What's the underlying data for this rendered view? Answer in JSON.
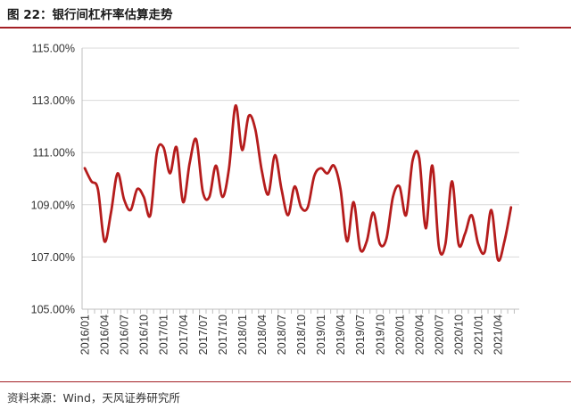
{
  "header": {
    "title": "图 22：银行间杠杆率估算走势"
  },
  "footer": {
    "source": "资料来源：Wind，天风证券研究所"
  },
  "chart_data": {
    "type": "line",
    "title": "",
    "xlabel": "",
    "ylabel": "",
    "ylim": [
      105,
      115
    ],
    "y_ticks": [
      "105.00%",
      "107.00%",
      "109.00%",
      "111.00%",
      "113.00%",
      "115.00%"
    ],
    "y_tick_values": [
      105,
      107,
      109,
      111,
      113,
      115
    ],
    "x_tick_labels": [
      "2016/01",
      "2016/04",
      "2016/07",
      "2016/10",
      "2017/01",
      "2017/04",
      "2017/07",
      "2017/10",
      "2018/01",
      "2018/04",
      "2018/07",
      "2018/10",
      "2019/01",
      "2019/04",
      "2019/07",
      "2019/10",
      "2020/01",
      "2020/04",
      "2020/07",
      "2020/10",
      "2021/01",
      "2021/04"
    ],
    "grid": "horizontal",
    "line_color": "#b51c1c",
    "series": [
      {
        "name": "",
        "x": [
          "2016/01",
          "2016/02",
          "2016/03",
          "2016/04",
          "2016/05",
          "2016/06",
          "2016/07",
          "2016/08",
          "2016/09",
          "2016/10",
          "2016/11",
          "2016/12",
          "2017/01",
          "2017/02",
          "2017/03",
          "2017/04",
          "2017/05",
          "2017/06",
          "2017/07",
          "2017/08",
          "2017/09",
          "2017/10",
          "2017/11",
          "2017/12",
          "2018/01",
          "2018/02",
          "2018/03",
          "2018/04",
          "2018/05",
          "2018/06",
          "2018/07",
          "2018/08",
          "2018/09",
          "2018/10",
          "2018/11",
          "2018/12",
          "2019/01",
          "2019/02",
          "2019/03",
          "2019/04",
          "2019/05",
          "2019/06",
          "2019/07",
          "2019/08",
          "2019/09",
          "2019/10",
          "2019/11",
          "2019/12",
          "2020/01",
          "2020/02",
          "2020/03",
          "2020/04",
          "2020/05",
          "2020/06",
          "2020/07",
          "2020/08",
          "2020/09",
          "2020/10",
          "2020/11",
          "2020/12",
          "2021/01",
          "2021/02",
          "2021/03",
          "2021/04",
          "2021/05",
          "2021/06"
        ],
        "values": [
          110.4,
          109.9,
          109.6,
          107.6,
          108.7,
          110.2,
          109.2,
          108.8,
          109.6,
          109.3,
          108.6,
          111.0,
          111.2,
          110.2,
          111.2,
          109.1,
          110.6,
          111.5,
          109.5,
          109.3,
          110.5,
          109.3,
          110.4,
          112.8,
          111.1,
          112.4,
          111.9,
          110.3,
          109.4,
          110.9,
          109.6,
          108.6,
          109.7,
          108.9,
          108.9,
          110.1,
          110.4,
          110.2,
          110.5,
          109.6,
          107.6,
          109.1,
          107.3,
          107.6,
          108.7,
          107.5,
          107.7,
          109.3,
          109.7,
          108.6,
          110.7,
          110.8,
          108.1,
          110.5,
          107.4,
          107.5,
          109.9,
          107.5,
          107.9,
          108.6,
          107.5,
          107.2,
          108.8,
          106.9,
          107.6,
          108.9
        ]
      }
    ]
  }
}
